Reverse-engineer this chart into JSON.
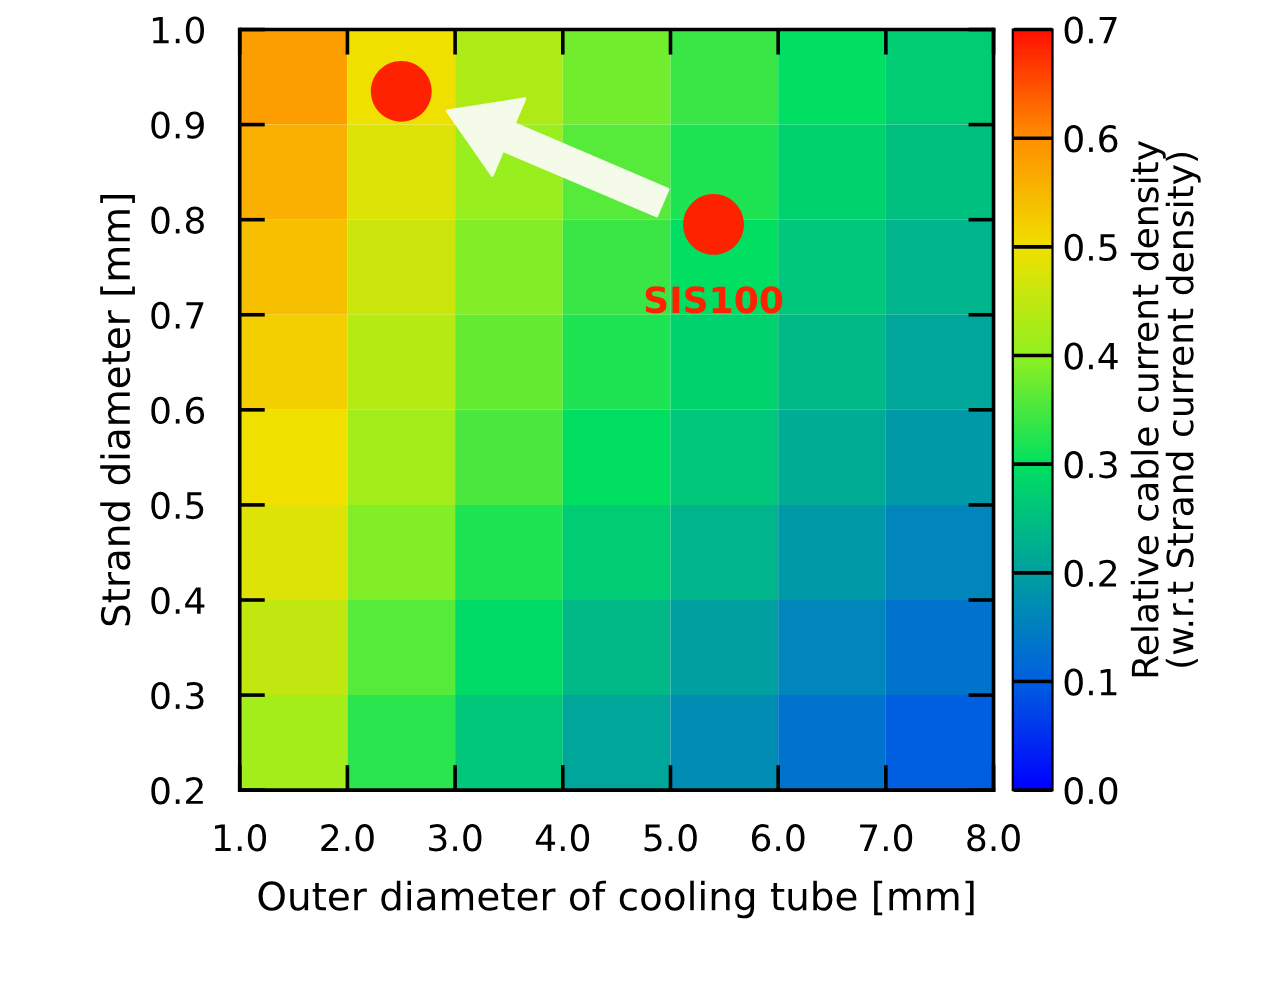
{
  "chart_data": {
    "type": "heatmap",
    "xlabel": "Outer diameter of cooling tube [mm]",
    "ylabel": "Strand diameter [mm]",
    "clabel": "Relative cable current density\n(w.r.t Strand current density)",
    "xlim": [
      1.0,
      8.0
    ],
    "ylim": [
      0.2,
      1.0
    ],
    "xticks": [
      {
        "value": 1.0,
        "label": "1.0"
      },
      {
        "value": 2.0,
        "label": "2.0"
      },
      {
        "value": 3.0,
        "label": "3.0"
      },
      {
        "value": 4.0,
        "label": "4.0"
      },
      {
        "value": 5.0,
        "label": "5.0"
      },
      {
        "value": 6.0,
        "label": "6.0"
      },
      {
        "value": 7.0,
        "label": "7.0"
      },
      {
        "value": 8.0,
        "label": "8.0"
      }
    ],
    "yticks": [
      0.2,
      0.3,
      0.4,
      0.5,
      0.6,
      0.7,
      0.8,
      0.9,
      {
        "value": 1.0,
        "label": "1.0"
      }
    ],
    "clim": [
      0.0,
      0.7
    ],
    "cticks": [
      {
        "value": 0.0,
        "label": "0.0"
      },
      0.1,
      0.2,
      0.3,
      0.4,
      0.5,
      0.6,
      0.7
    ],
    "colors": [
      "#0000ff",
      "#0060e0",
      "#00a0a0",
      "#00e060",
      "#90f020",
      "#f0e000",
      "#ff9000",
      "#ff1000"
    ],
    "cells": [
      [
        0.58,
        0.5,
        0.43,
        0.38,
        0.34,
        0.3,
        0.27
      ],
      [
        0.56,
        0.48,
        0.41,
        0.36,
        0.32,
        0.28,
        0.25
      ],
      [
        0.54,
        0.46,
        0.39,
        0.34,
        0.3,
        0.26,
        0.23
      ],
      [
        0.52,
        0.44,
        0.37,
        0.32,
        0.28,
        0.24,
        0.21
      ],
      [
        0.5,
        0.42,
        0.35,
        0.3,
        0.26,
        0.22,
        0.19
      ],
      [
        0.48,
        0.39,
        0.32,
        0.27,
        0.23,
        0.19,
        0.16
      ],
      [
        0.45,
        0.36,
        0.29,
        0.24,
        0.2,
        0.16,
        0.13
      ],
      [
        0.42,
        0.33,
        0.26,
        0.21,
        0.17,
        0.13,
        0.1
      ]
    ],
    "series": [
      {
        "type": "scatter",
        "color": "#ff2200",
        "x": [
          2.5,
          5.4
        ],
        "values": [
          0.935,
          0.795
        ]
      }
    ],
    "annotations": [
      {
        "text": "SIS100",
        "x": 5.4,
        "y": 0.795
      }
    ]
  }
}
